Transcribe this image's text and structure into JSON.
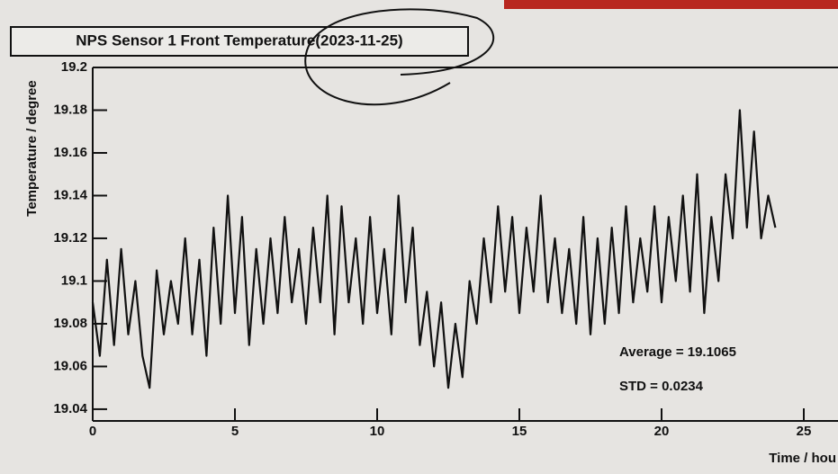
{
  "chart_data": {
    "type": "line",
    "title": "NPS Sensor 1 Front Temperature(2023-11-25)",
    "y_label": "Temperature / degree",
    "x_label": "Time / hou",
    "annotations": [
      "Average = 19.1065",
      "STD = 0.0234"
    ],
    "xlim": [
      0,
      25
    ],
    "ylim": [
      19.0345,
      19.2
    ],
    "xticks": [
      0,
      5,
      10,
      15,
      20,
      25
    ],
    "yticks": [
      19.04,
      19.06,
      19.08,
      19.1,
      19.12,
      19.14,
      19.16,
      19.18,
      19.2
    ],
    "x": [
      0,
      0.25,
      0.5,
      0.75,
      1,
      1.25,
      1.5,
      1.75,
      2,
      2.25,
      2.5,
      2.75,
      3,
      3.25,
      3.5,
      3.75,
      4,
      4.25,
      4.5,
      4.75,
      5,
      5.25,
      5.5,
      5.75,
      6,
      6.25,
      6.5,
      6.75,
      7,
      7.25,
      7.5,
      7.75,
      8,
      8.25,
      8.5,
      8.75,
      9,
      9.25,
      9.5,
      9.75,
      10,
      10.25,
      10.5,
      10.75,
      11,
      11.25,
      11.5,
      11.75,
      12,
      12.25,
      12.5,
      12.75,
      13,
      13.25,
      13.5,
      13.75,
      14,
      14.25,
      14.5,
      14.75,
      15,
      15.25,
      15.5,
      15.75,
      16,
      16.25,
      16.5,
      16.75,
      17,
      17.25,
      17.5,
      17.75,
      18,
      18.25,
      18.5,
      18.75,
      19,
      19.25,
      19.5,
      19.75,
      20,
      20.25,
      20.5,
      20.75,
      21,
      21.25,
      21.5,
      21.75,
      22,
      22.25,
      22.5,
      22.75,
      23,
      23.25,
      23.5,
      23.75,
      24
    ],
    "series": [
      {
        "color": "#111111",
        "values": [
          19.09,
          19.065,
          19.11,
          19.07,
          19.115,
          19.075,
          19.1,
          19.065,
          19.05,
          19.105,
          19.075,
          19.1,
          19.08,
          19.12,
          19.075,
          19.11,
          19.065,
          19.125,
          19.08,
          19.14,
          19.085,
          19.13,
          19.07,
          19.115,
          19.08,
          19.12,
          19.085,
          19.13,
          19.09,
          19.115,
          19.08,
          19.125,
          19.09,
          19.14,
          19.075,
          19.135,
          19.09,
          19.12,
          19.08,
          19.13,
          19.085,
          19.115,
          19.075,
          19.14,
          19.09,
          19.125,
          19.07,
          19.095,
          19.06,
          19.09,
          19.05,
          19.08,
          19.055,
          19.1,
          19.08,
          19.12,
          19.09,
          19.135,
          19.095,
          19.13,
          19.085,
          19.125,
          19.095,
          19.14,
          19.09,
          19.12,
          19.085,
          19.115,
          19.08,
          19.13,
          19.075,
          19.12,
          19.08,
          19.125,
          19.085,
          19.135,
          19.09,
          19.12,
          19.095,
          19.135,
          19.09,
          19.13,
          19.1,
          19.14,
          19.095,
          19.15,
          19.085,
          19.13,
          19.1,
          19.15,
          19.12,
          19.18,
          19.125,
          19.17,
          19.12,
          19.14,
          19.125
        ]
      }
    ]
  }
}
